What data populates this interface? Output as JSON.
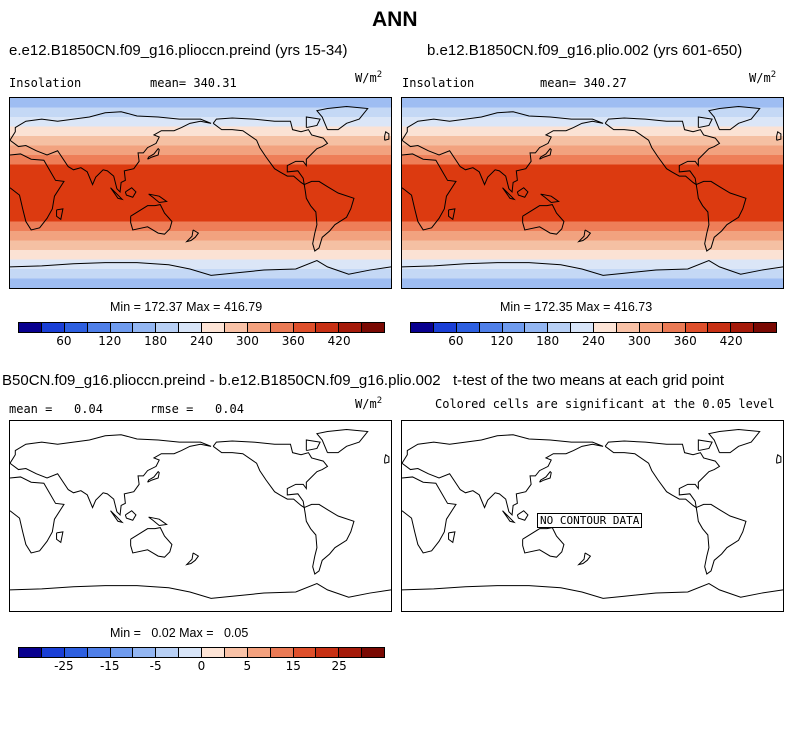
{
  "title": "ANN",
  "colors": {
    "insolation_bands": [
      "#9ebdf2",
      "#c4d8f5",
      "#dbe6f7",
      "#fbe2d4",
      "#f5c0a3",
      "#f2a27f",
      "#ee7e58",
      "#e65a34",
      "#e0421c",
      "#dc3a10"
    ],
    "colorbar_top": [
      "#08008f",
      "#1a3fd6",
      "#2d5fe0",
      "#4f7fe8",
      "#6f9bee",
      "#93b6f2",
      "#b8d0f5",
      "#d8e5f8",
      "#fde4d6",
      "#f9c2a7",
      "#f3a17e",
      "#ea7a55",
      "#de4f2b",
      "#c73014",
      "#a51a0a",
      "#7a0903"
    ]
  },
  "panels": {
    "top_left": {
      "title": "e.e12.B1850CN.f09_g16.plioccn.preind (yrs 15-34)",
      "variable": "Insolation",
      "mean": "mean= 340.31",
      "units": "W/m",
      "units_exp": "2",
      "minmax": "Min = 172.37 Max = 416.79",
      "ticks": [
        "60",
        "120",
        "180",
        "240",
        "300",
        "360",
        "420"
      ]
    },
    "top_right": {
      "title": "b.e12.B1850CN.f09_g16.plio.002 (yrs 601-650)",
      "variable": "Insolation",
      "mean": "mean= 340.27",
      "units": "W/m",
      "units_exp": "2",
      "minmax": "Min = 172.35 Max = 416.73",
      "ticks": [
        "60",
        "120",
        "180",
        "240",
        "300",
        "360",
        "420"
      ]
    },
    "bottom_left": {
      "title": "B50CN.f09_g16.plioccn.preind - b.e12.B1850CN.f09_g16.plio.002",
      "mean": "mean =   0.04",
      "rmse": "rmse =   0.04",
      "units": "W/m",
      "units_exp": "2",
      "minmax": "Min =   0.02 Max =   0.05",
      "ticks": [
        "-25",
        "-15",
        "-5",
        "0",
        "5",
        "15",
        "25"
      ]
    },
    "bottom_right": {
      "title": "t-test of the two means at each grid point",
      "subtitle": "Colored cells are significant at the 0.05 level",
      "no_data": "NO CONTOUR DATA"
    }
  }
}
